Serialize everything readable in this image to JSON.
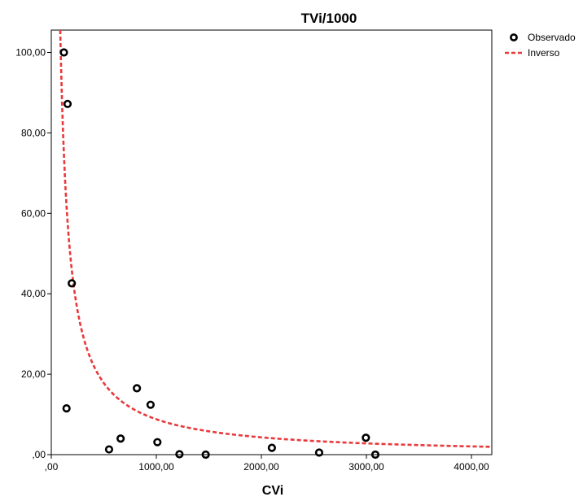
{
  "chart_data": {
    "type": "scatter",
    "title": "TVi/1000",
    "xlabel": "CVi",
    "ylabel": "",
    "xlim": [
      0,
      4200
    ],
    "ylim": [
      0,
      106
    ],
    "x_ticks": [
      {
        "value": 0,
        "label": ",00"
      },
      {
        "value": 1000,
        "label": "1000,00"
      },
      {
        "value": 2000,
        "label": "2000,00"
      },
      {
        "value": 3000,
        "label": "3000,00"
      },
      {
        "value": 4000,
        "label": "4000,00"
      }
    ],
    "y_ticks": [
      {
        "value": 0,
        "label": ",00"
      },
      {
        "value": 20,
        "label": "20,00"
      },
      {
        "value": 40,
        "label": "40,00"
      },
      {
        "value": 60,
        "label": "60,00"
      },
      {
        "value": 80,
        "label": "80,00"
      },
      {
        "value": 100,
        "label": "100,00"
      }
    ],
    "legend_position": "top-right, outside plot",
    "series": [
      {
        "name": "Observado",
        "kind": "scatter",
        "marker": "open-circle",
        "color": "#000000",
        "points": [
          {
            "x": 120,
            "y": 100.0
          },
          {
            "x": 155,
            "y": 87.2
          },
          {
            "x": 195,
            "y": 42.6
          },
          {
            "x": 145,
            "y": 11.5
          },
          {
            "x": 550,
            "y": 1.3
          },
          {
            "x": 660,
            "y": 4.0
          },
          {
            "x": 815,
            "y": 16.5
          },
          {
            "x": 945,
            "y": 12.4
          },
          {
            "x": 1010,
            "y": 3.1
          },
          {
            "x": 1220,
            "y": 0.1
          },
          {
            "x": 1470,
            "y": 0.0
          },
          {
            "x": 2100,
            "y": 1.7
          },
          {
            "x": 2550,
            "y": 0.5
          },
          {
            "x": 2995,
            "y": 4.2
          },
          {
            "x": 3085,
            "y": 0.0
          }
        ]
      },
      {
        "name": "Inverso",
        "kind": "line",
        "style": "dashed",
        "color": "#e8393b",
        "equation": "y = b0 + b1 / x",
        "b0": -0.2,
        "b1": 9000,
        "x_range": [
          85,
          4200
        ]
      }
    ]
  }
}
